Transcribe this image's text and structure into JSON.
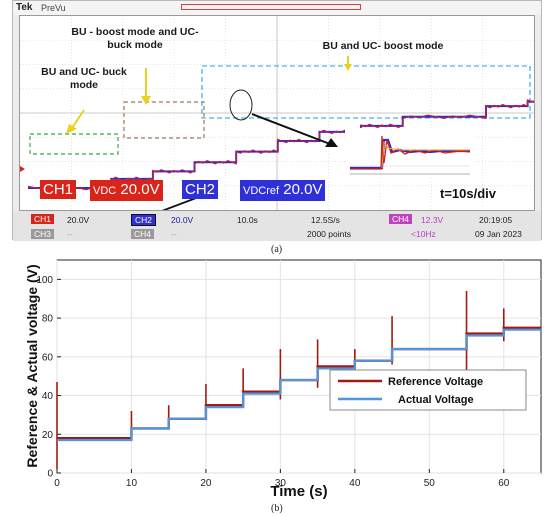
{
  "panel_a": {
    "brand": "Tek",
    "mode": "PreVu",
    "annotations": {
      "bu_boost_uc_buck": "BU - boost mode and UC- buck mode",
      "bu_uc_buck": "BU and UC- buck mode",
      "bu_uc_boost": "BU and UC- boost mode"
    },
    "ch1_label": "CH1",
    "ch1_signal": "VDC",
    "ch1_scale": "20.0V",
    "ch2_label": "CH2",
    "ch2_signal": "VDCref",
    "ch2_scale": "20.0V",
    "timebase": "t=10s/div",
    "status": {
      "ch1": "CH1",
      "ch1_val": "20.0V",
      "ch2": "CH2",
      "ch2_val": "20.0V",
      "ch3": "CH3",
      "ch3_val": "--",
      "ch4a": "CH4",
      "ch4a_val": "--",
      "time": "10.0s",
      "rate": "12.5S/s",
      "points": "2000 points",
      "ch4b": "CH4",
      "ch4b_val": "12.3V",
      "freq": "<10Hz",
      "clock": "20:19:05",
      "date": "09 Jan 2023"
    },
    "caption": "(a)"
  },
  "chart_data": {
    "type": "line",
    "title": "",
    "xlabel": "Time (s)",
    "ylabel": "Reference & Actual voltage (V)",
    "xlim": [
      0,
      65
    ],
    "ylim": [
      0,
      110
    ],
    "xticks": [
      0,
      10,
      20,
      30,
      40,
      50,
      60
    ],
    "yticks": [
      0,
      20,
      40,
      60,
      80,
      100
    ],
    "grid": true,
    "legend_position": "center-right",
    "series": [
      {
        "name": "Reference Voltage",
        "color": "#a31a10",
        "steps": [
          [
            0,
            18
          ],
          [
            10,
            23
          ],
          [
            15,
            28
          ],
          [
            20,
            35
          ],
          [
            25,
            42
          ],
          [
            30,
            48
          ],
          [
            35,
            55
          ],
          [
            40,
            58
          ],
          [
            45,
            64
          ],
          [
            55,
            72
          ],
          [
            60,
            75
          ],
          [
            65,
            75
          ]
        ],
        "spikes": [
          [
            0,
            47,
            2
          ],
          [
            10,
            32,
            18
          ],
          [
            15,
            35,
            23
          ],
          [
            20,
            46,
            30
          ],
          [
            25,
            54,
            36
          ],
          [
            30,
            64,
            38
          ],
          [
            35,
            69,
            44
          ],
          [
            40,
            64,
            50
          ],
          [
            45,
            81,
            56
          ],
          [
            55,
            94,
            49
          ],
          [
            60,
            85,
            68
          ]
        ]
      },
      {
        "name": "Actual Voltage",
        "color": "#4f96df",
        "steps": [
          [
            0,
            17
          ],
          [
            10,
            23
          ],
          [
            15,
            28
          ],
          [
            20,
            34
          ],
          [
            25,
            41
          ],
          [
            30,
            48
          ],
          [
            35,
            54
          ],
          [
            40,
            58
          ],
          [
            45,
            64
          ],
          [
            55,
            71
          ],
          [
            60,
            74
          ],
          [
            65,
            74
          ]
        ]
      }
    ],
    "caption": "(b)"
  }
}
